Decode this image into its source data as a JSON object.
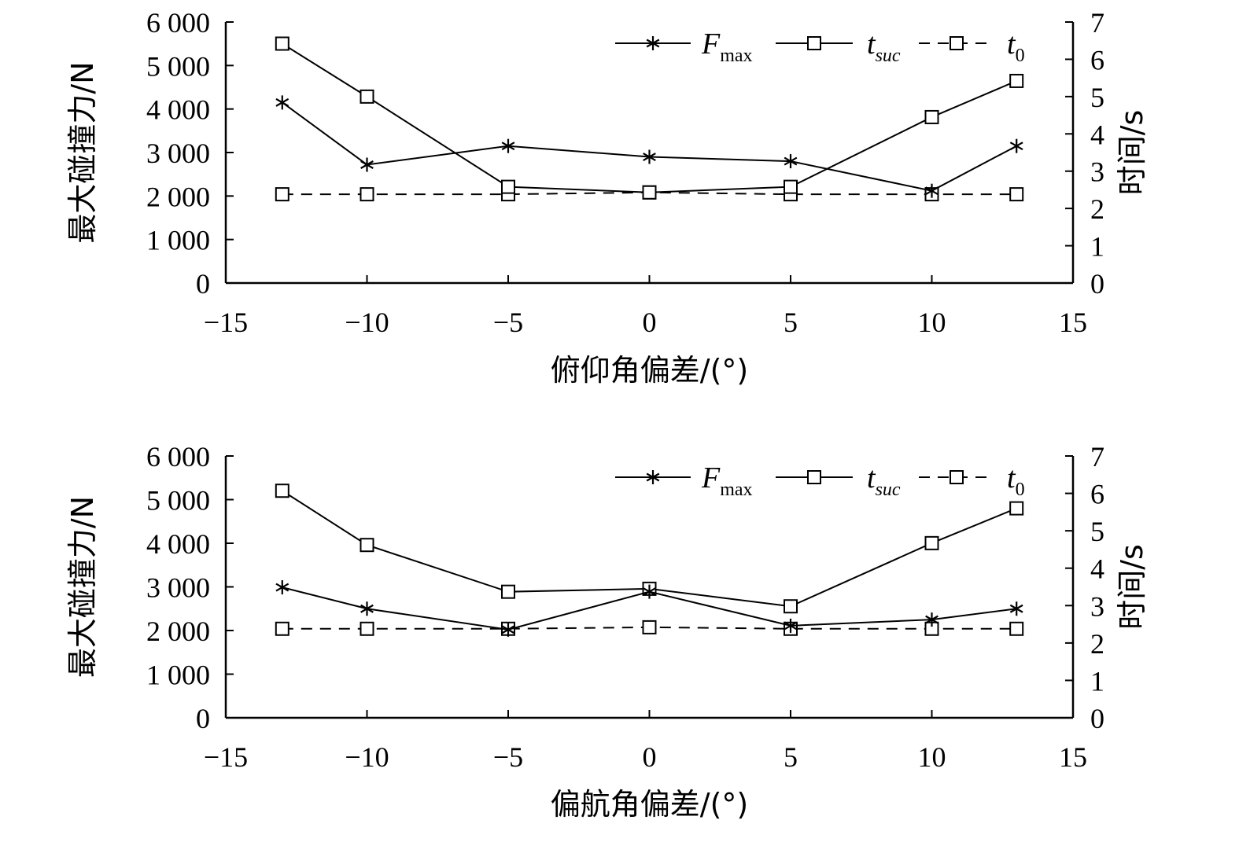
{
  "chart_data": [
    {
      "type": "line",
      "xlabel": "俯仰角偏差/(°)",
      "ylabel_left": "最大碰撞力/N",
      "ylabel_right": "时间/s",
      "xlim": [
        -15,
        15
      ],
      "ylim_left": [
        0,
        6000
      ],
      "ylim_right": [
        0,
        7
      ],
      "x_ticks": [
        "−15",
        "−10",
        "−5",
        "0",
        "5",
        "10",
        "15"
      ],
      "x_tick_values": [
        -15,
        -10,
        -5,
        0,
        5,
        10,
        15
      ],
      "y_left_ticks": [
        "0",
        "1 000",
        "2 000",
        "3 000",
        "4 000",
        "5 000",
        "6 000"
      ],
      "y_left_tick_values": [
        0,
        1000,
        2000,
        3000,
        4000,
        5000,
        6000
      ],
      "y_right_ticks": [
        "0",
        "1",
        "2",
        "3",
        "4",
        "5",
        "6",
        "7"
      ],
      "y_right_tick_values": [
        0,
        1,
        2,
        3,
        4,
        5,
        6,
        7
      ],
      "x": [
        -13,
        -10,
        -5,
        0,
        5,
        10,
        13
      ],
      "series": [
        {
          "name": "F",
          "sub": "max",
          "axis": "left",
          "marker": "star",
          "dash": false,
          "values": [
            4150,
            2720,
            3150,
            2900,
            2800,
            2120,
            3150
          ]
        },
        {
          "name": "t",
          "sub": "suc",
          "axis": "right",
          "marker": "square",
          "dash": false,
          "values": [
            6.42,
            5.0,
            2.58,
            2.43,
            2.58,
            4.45,
            5.42
          ]
        },
        {
          "name": "t",
          "sub": "0",
          "axis": "right",
          "marker": "square",
          "dash": true,
          "values": [
            2.38,
            2.38,
            2.38,
            2.43,
            2.38,
            2.38,
            2.38
          ]
        }
      ]
    },
    {
      "type": "line",
      "xlabel": "偏航角偏差/(°)",
      "ylabel_left": "最大碰撞力/N",
      "ylabel_right": "时间/s",
      "xlim": [
        -15,
        15
      ],
      "ylim_left": [
        0,
        6000
      ],
      "ylim_right": [
        0,
        7
      ],
      "x_ticks": [
        "−15",
        "−10",
        "−5",
        "0",
        "5",
        "10",
        "15"
      ],
      "x_tick_values": [
        -15,
        -10,
        -5,
        0,
        5,
        10,
        15
      ],
      "y_left_ticks": [
        "0",
        "1 000",
        "2 000",
        "3 000",
        "4 000",
        "5 000",
        "6 000"
      ],
      "y_left_tick_values": [
        0,
        1000,
        2000,
        3000,
        4000,
        5000,
        6000
      ],
      "y_right_ticks": [
        "0",
        "1",
        "2",
        "3",
        "4",
        "5",
        "6",
        "7"
      ],
      "y_right_tick_values": [
        0,
        1,
        2,
        3,
        4,
        5,
        6,
        7
      ],
      "x": [
        -13,
        -10,
        -5,
        0,
        5,
        10,
        13
      ],
      "series": [
        {
          "name": "F",
          "sub": "max",
          "axis": "left",
          "marker": "star",
          "dash": false,
          "values": [
            2990,
            2500,
            2020,
            2890,
            2110,
            2250,
            2500
          ]
        },
        {
          "name": "t",
          "sub": "suc",
          "axis": "right",
          "marker": "square",
          "dash": false,
          "values": [
            6.07,
            4.62,
            3.37,
            3.45,
            2.98,
            4.67,
            5.6
          ]
        },
        {
          "name": "t",
          "sub": "0",
          "axis": "right",
          "marker": "square",
          "dash": true,
          "values": [
            2.38,
            2.38,
            2.38,
            2.42,
            2.38,
            2.38,
            2.38
          ]
        }
      ]
    }
  ]
}
